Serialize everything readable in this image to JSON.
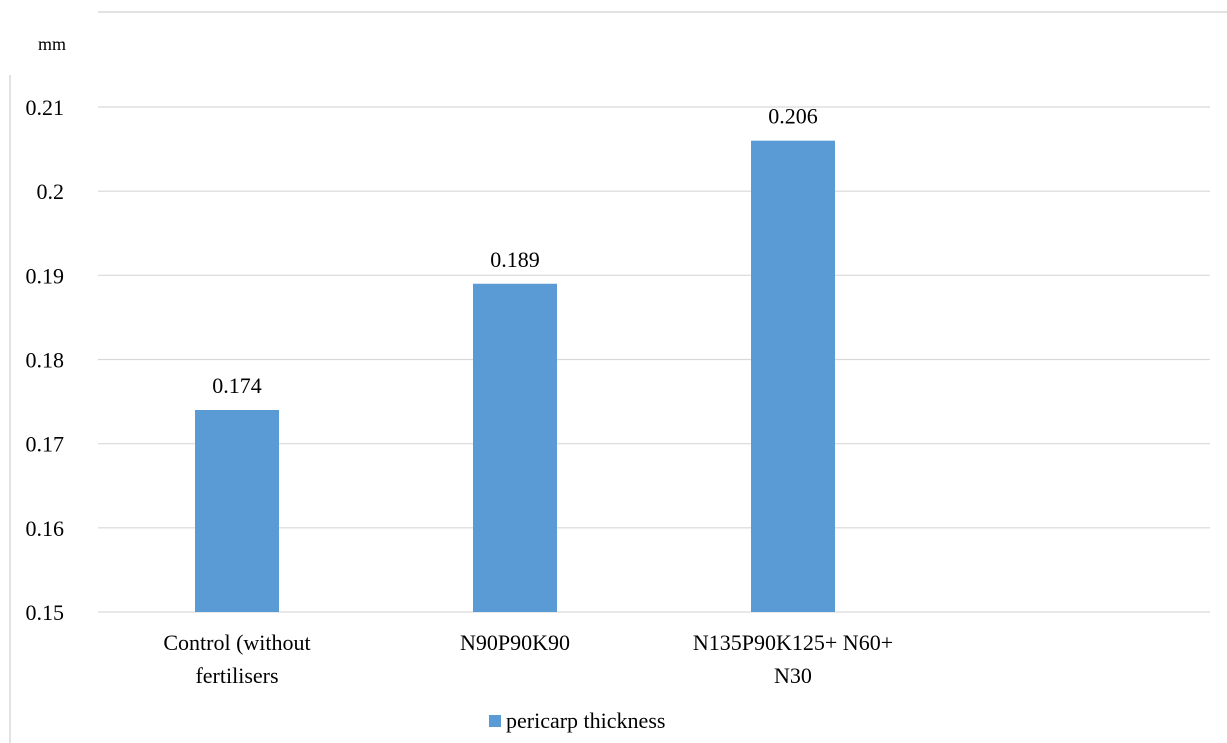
{
  "chart_data": {
    "type": "bar",
    "ylabel": "mm",
    "categories": [
      [
        "Control (without",
        "fertilisers"
      ],
      [
        "N90P90K90"
      ],
      [
        "N135P90K125+ N60+",
        "N30"
      ]
    ],
    "series": [
      {
        "name": "pericarp thickness",
        "values": [
          0.174,
          0.189,
          0.206
        ],
        "value_labels": [
          "0.174",
          "0.189",
          "0.206"
        ],
        "color": "#5b9bd5"
      }
    ],
    "ylim": [
      0.15,
      0.21
    ],
    "yticks": [
      0.15,
      0.16,
      0.17,
      0.18,
      0.19,
      0.2,
      0.21
    ],
    "ytick_labels": [
      "0.15",
      "0.16",
      "0.17",
      "0.18",
      "0.19",
      "0.2",
      "0.21"
    ],
    "grid": true,
    "legend_position": "bottom"
  }
}
